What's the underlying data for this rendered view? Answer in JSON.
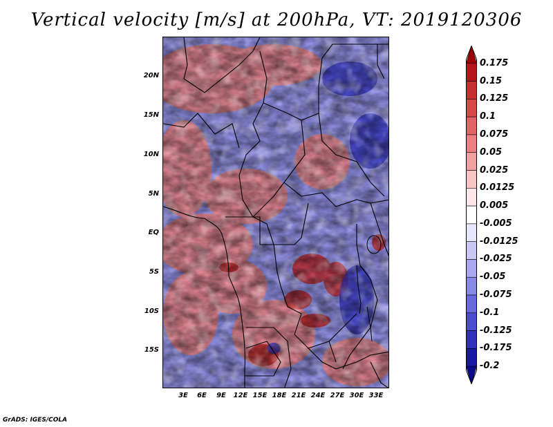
{
  "title": "Vertical velocity [m/s] at 200hPa, VT: 2019120306",
  "credit": "GrADS: IGES/COLA",
  "lat_labels": [
    "20N",
    "15N",
    "10N",
    "5N",
    "EQ",
    "5S",
    "10S",
    "15S"
  ],
  "lon_labels": [
    "3E",
    "6E",
    "9E",
    "12E",
    "15E",
    "18E",
    "21E",
    "24E",
    "27E",
    "30E",
    "33E"
  ],
  "colorbar": {
    "labels": [
      "0.175",
      "0.15",
      "0.125",
      "0.1",
      "0.075",
      "0.05",
      "0.025",
      "0.0125",
      "0.005",
      "-0.005",
      "-0.0125",
      "-0.025",
      "-0.05",
      "-0.075",
      "-0.1",
      "-0.125",
      "-0.175",
      "-0.2"
    ],
    "colors": [
      "#a00000",
      "#b51818",
      "#c83030",
      "#d84848",
      "#e36464",
      "#ec8080",
      "#f3a0a0",
      "#f8c4c4",
      "#fde6e6",
      "#ffffff",
      "#e6e6fd",
      "#c8c8f6",
      "#a8a8f0",
      "#8888e6",
      "#6a6adc",
      "#4c4cd0",
      "#3030bc",
      "#1818a6",
      "#0a0a8c"
    ]
  }
}
